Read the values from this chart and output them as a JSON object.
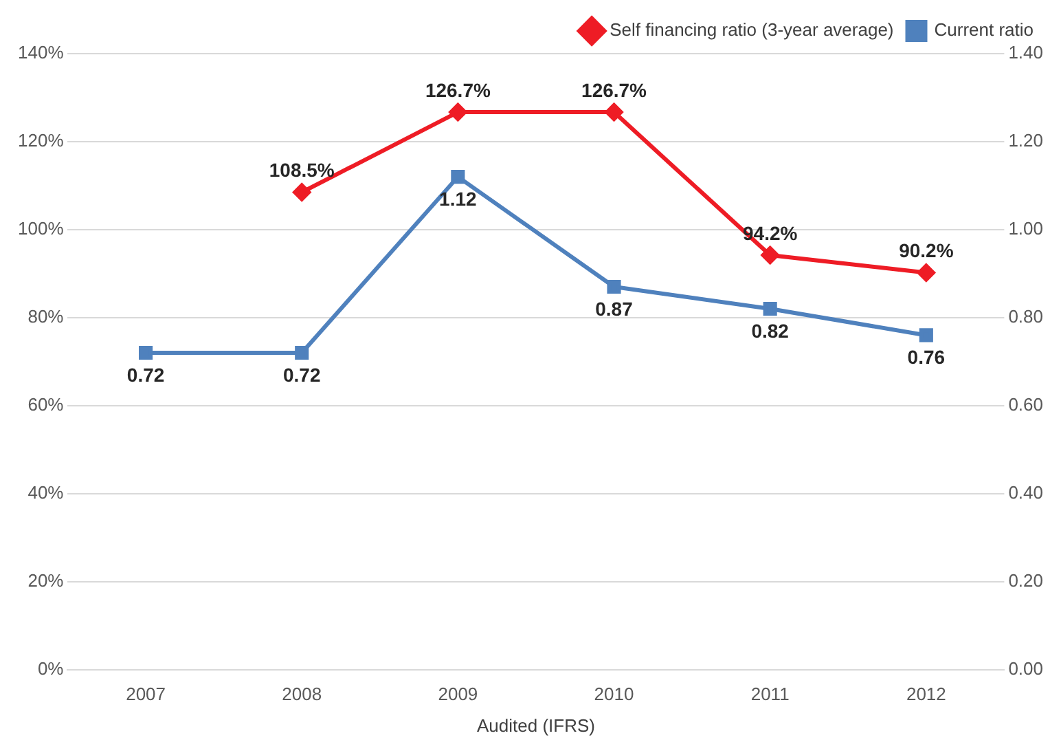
{
  "chart_data": {
    "type": "line",
    "xlabel": "Audited (IFRS)",
    "categories": [
      "2007",
      "2008",
      "2009",
      "2010",
      "2011",
      "2012"
    ],
    "series": [
      {
        "name": "Self financing ratio (3-year average)",
        "color": "#ee1c25",
        "marker": "diamond",
        "values": [
          null,
          108.5,
          126.7,
          126.7,
          94.2,
          90.2
        ],
        "value_labels": [
          null,
          "108.5%",
          "126.7%",
          "126.7%",
          "94.2%",
          "90.2%"
        ]
      },
      {
        "name": "Current ratio",
        "color": "#4f81bd",
        "marker": "square",
        "axis": "y2",
        "values": [
          0.72,
          0.72,
          1.12,
          0.87,
          0.82,
          0.76
        ],
        "value_labels": [
          "0.72",
          "0.72",
          "1.12",
          "0.87",
          "0.82",
          "0.76"
        ]
      }
    ],
    "ylim": [
      0,
      140
    ],
    "yticks": [
      {
        "value": 0,
        "label": "0%"
      },
      {
        "value": 20,
        "label": "20%"
      },
      {
        "value": 40,
        "label": "40%"
      },
      {
        "value": 60,
        "label": "60%"
      },
      {
        "value": 80,
        "label": "80%"
      },
      {
        "value": 100,
        "label": "100%"
      },
      {
        "value": 120,
        "label": "120%"
      },
      {
        "value": 140,
        "label": "140%"
      }
    ],
    "y2lim": [
      0,
      1.4
    ],
    "y2ticks": [
      {
        "value": 0,
        "label": "0.00"
      },
      {
        "value": 0.2,
        "label": "0.20"
      },
      {
        "value": 0.4,
        "label": "0.40"
      },
      {
        "value": 0.6,
        "label": "0.60"
      },
      {
        "value": 0.8,
        "label": "0.80"
      },
      {
        "value": 1,
        "label": "1.00"
      },
      {
        "value": 1.2,
        "label": "1.20"
      },
      {
        "value": 1.4,
        "label": "1.40"
      }
    ],
    "grid": "y",
    "legend": "top right",
    "line_style": "solid"
  }
}
